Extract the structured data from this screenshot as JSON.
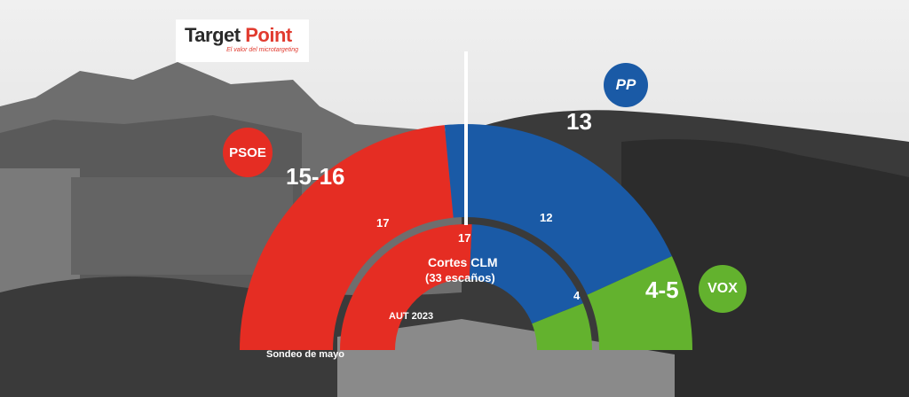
{
  "brand": {
    "name_part1": "Target",
    "name_part2": "Point",
    "tagline": "El valor del microtargeting"
  },
  "center": {
    "title": "Cortes CLM",
    "subtitle": "(33 escaños)",
    "majority_label": "17"
  },
  "ring_labels": {
    "outer": "Sondeo de mayo",
    "inner": "AUT 2023"
  },
  "parties": {
    "psoe": {
      "badge": "PSOE",
      "survey_label": "15-16",
      "aut_label": "17"
    },
    "pp": {
      "badge": "PP",
      "survey_label": "13",
      "aut_label": "12"
    },
    "vox": {
      "badge": "VOX",
      "survey_label": "4-5",
      "aut_label": "4"
    }
  },
  "colors": {
    "psoe": "#e52d23",
    "pp": "#1a5aa6",
    "vox": "#63b22e",
    "label": "#ffffff"
  },
  "chart_data": {
    "type": "pie",
    "variant": "semicircle-parliament",
    "total_seats": 33,
    "majority": 17,
    "series": [
      {
        "name": "Sondeo de mayo",
        "values": {
          "PSOE": 15.5,
          "PP": 13,
          "VOX": 4.5
        },
        "labels": [
          "15-16",
          "13",
          "4-5"
        ]
      },
      {
        "name": "AUT 2023",
        "values": {
          "PSOE": 17,
          "PP": 12,
          "VOX": 4
        },
        "labels": [
          "17",
          "12",
          "4"
        ]
      }
    ],
    "categories": [
      "PSOE",
      "PP",
      "VOX"
    ]
  }
}
